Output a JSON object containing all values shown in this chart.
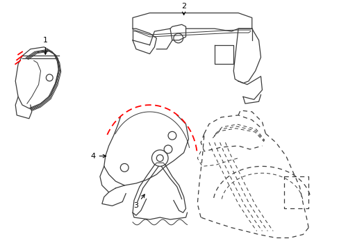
{
  "background_color": "#ffffff",
  "line_color": "#3a3a3a",
  "red_color": "#ff0000",
  "label_color": "#000000",
  "figsize": [
    4.89,
    3.6
  ],
  "dpi": 100
}
